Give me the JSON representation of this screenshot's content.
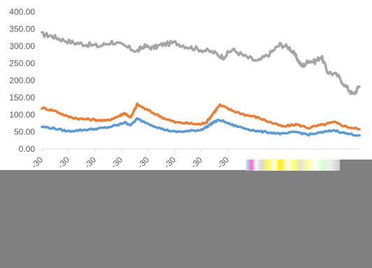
{
  "chart_data": {
    "type": "line",
    "title": "",
    "xlabel": "",
    "ylabel": "",
    "ylim": [
      0,
      400
    ],
    "yticks": [
      "0.00",
      "50.00",
      "100.00",
      "150.00",
      "200.00",
      "250.00",
      "300.00",
      "350.00",
      "400.00"
    ],
    "xticks_visible": [
      "-30",
      "-30",
      "-30",
      "-30",
      "-30",
      "-30",
      "-30",
      "-30"
    ],
    "grid": false,
    "legend": "none",
    "x_index_range": [
      0,
      100
    ],
    "series": [
      {
        "color": "#a5a5a5",
        "x": [
          0,
          3,
          6,
          10,
          14,
          18,
          22,
          26,
          30,
          32,
          35,
          38,
          42,
          46,
          50,
          54,
          57,
          60,
          64,
          68,
          72,
          75,
          78,
          80,
          82,
          84,
          86,
          88,
          90,
          93,
          96,
          98,
          100
        ],
        "values": [
          335,
          330,
          320,
          310,
          305,
          300,
          312,
          300,
          285,
          300,
          295,
          305,
          310,
          298,
          290,
          282,
          268,
          290,
          270,
          255,
          280,
          305,
          295,
          270,
          240,
          258,
          255,
          270,
          225,
          215,
          180,
          158,
          182
        ]
      },
      {
        "color": "#ed7d31",
        "x": [
          0,
          4,
          8,
          12,
          16,
          20,
          24,
          26,
          28,
          30,
          34,
          38,
          42,
          46,
          50,
          52,
          54,
          56,
          60,
          64,
          68,
          72,
          76,
          80,
          84,
          88,
          92,
          96,
          100
        ],
        "values": [
          120,
          112,
          95,
          88,
          86,
          82,
          95,
          105,
          92,
          130,
          110,
          92,
          78,
          75,
          72,
          80,
          105,
          128,
          112,
          100,
          92,
          78,
          65,
          72,
          62,
          70,
          78,
          65,
          58
        ]
      },
      {
        "color": "#5b9bd5",
        "x": [
          0,
          4,
          8,
          12,
          16,
          20,
          24,
          26,
          28,
          30,
          34,
          38,
          42,
          46,
          50,
          52,
          54,
          56,
          60,
          64,
          68,
          72,
          76,
          80,
          84,
          88,
          92,
          96,
          100
        ],
        "values": [
          65,
          60,
          52,
          55,
          58,
          62,
          70,
          78,
          70,
          88,
          72,
          58,
          50,
          52,
          56,
          65,
          78,
          85,
          70,
          60,
          52,
          48,
          44,
          50,
          42,
          48,
          55,
          45,
          40
        ]
      }
    ]
  },
  "overlay": {
    "occluder_color": "#808080"
  }
}
